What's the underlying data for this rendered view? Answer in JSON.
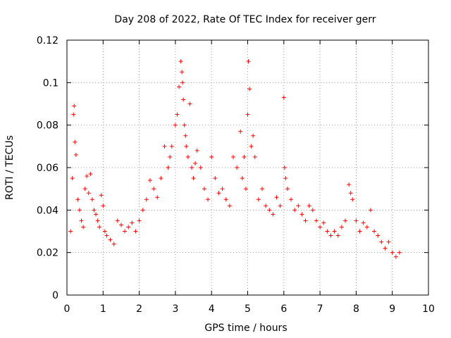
{
  "chart_data": {
    "type": "scatter",
    "title": "Day 208 of 2022, Rate Of TEC Index for receiver gerr",
    "xlabel": "GPS time / hours",
    "ylabel": "ROTI / TECUs",
    "xlim": [
      0,
      10
    ],
    "ylim": [
      0,
      0.12
    ],
    "xticks": [
      "0",
      "1",
      "2",
      "3",
      "4",
      "5",
      "6",
      "7",
      "8",
      "9",
      "10"
    ],
    "yticks": [
      "0",
      "0.02",
      "0.04",
      "0.06",
      "0.08",
      "0.1",
      "0.12"
    ],
    "grid": true,
    "marker": "+",
    "color": "#ff0000",
    "series": [
      {
        "x": [
          0.1,
          0.15,
          0.18,
          0.2,
          0.22,
          0.25,
          0.3,
          0.35,
          0.4,
          0.45,
          0.5,
          0.55,
          0.6,
          0.65,
          0.7,
          0.75,
          0.8,
          0.85,
          0.9,
          0.95,
          1.0,
          1.05,
          1.1,
          1.2,
          1.3,
          1.4,
          1.5,
          1.6,
          1.7,
          1.8,
          1.9,
          2.0,
          2.1,
          2.2,
          2.3,
          2.4,
          2.5,
          2.6,
          2.7,
          2.8,
          2.85,
          2.9,
          3.0,
          3.05,
          3.1,
          3.15,
          3.18,
          3.2,
          3.22,
          3.25,
          3.28,
          3.3,
          3.35,
          3.4,
          3.45,
          3.5,
          3.55,
          3.6,
          3.7,
          3.8,
          3.9,
          4.0,
          4.1,
          4.2,
          4.3,
          4.4,
          4.5,
          4.6,
          4.7,
          4.8,
          4.85,
          4.9,
          4.95,
          5.0,
          5.02,
          5.05,
          5.1,
          5.15,
          5.2,
          5.3,
          5.4,
          5.5,
          5.6,
          5.7,
          5.8,
          5.9,
          6.0,
          6.02,
          6.05,
          6.1,
          6.2,
          6.3,
          6.4,
          6.5,
          6.6,
          6.7,
          6.8,
          6.9,
          7.0,
          7.1,
          7.2,
          7.3,
          7.4,
          7.5,
          7.6,
          7.7,
          7.8,
          7.85,
          7.9,
          8.0,
          8.1,
          8.2,
          8.3,
          8.4,
          8.5,
          8.6,
          8.7,
          8.8,
          8.9,
          9.0,
          9.1,
          9.2
        ],
        "y": [
          0.03,
          0.055,
          0.085,
          0.089,
          0.072,
          0.066,
          0.045,
          0.04,
          0.035,
          0.032,
          0.05,
          0.056,
          0.048,
          0.057,
          0.045,
          0.04,
          0.038,
          0.035,
          0.032,
          0.047,
          0.042,
          0.03,
          0.028,
          0.026,
          0.024,
          0.035,
          0.033,
          0.03,
          0.032,
          0.034,
          0.03,
          0.035,
          0.04,
          0.045,
          0.054,
          0.05,
          0.046,
          0.055,
          0.07,
          0.06,
          0.065,
          0.07,
          0.08,
          0.085,
          0.098,
          0.11,
          0.105,
          0.1,
          0.092,
          0.08,
          0.075,
          0.07,
          0.065,
          0.09,
          0.06,
          0.055,
          0.062,
          0.068,
          0.06,
          0.05,
          0.045,
          0.065,
          0.055,
          0.048,
          0.05,
          0.045,
          0.042,
          0.065,
          0.06,
          0.077,
          0.055,
          0.065,
          0.05,
          0.085,
          0.11,
          0.097,
          0.07,
          0.075,
          0.065,
          0.045,
          0.05,
          0.042,
          0.04,
          0.038,
          0.046,
          0.042,
          0.093,
          0.06,
          0.055,
          0.05,
          0.045,
          0.04,
          0.042,
          0.038,
          0.035,
          0.042,
          0.04,
          0.035,
          0.032,
          0.034,
          0.03,
          0.028,
          0.03,
          0.028,
          0.032,
          0.035,
          0.052,
          0.048,
          0.045,
          0.035,
          0.03,
          0.034,
          0.032,
          0.04,
          0.03,
          0.028,
          0.025,
          0.022,
          0.025,
          0.02,
          0.018,
          0.02
        ]
      }
    ]
  }
}
